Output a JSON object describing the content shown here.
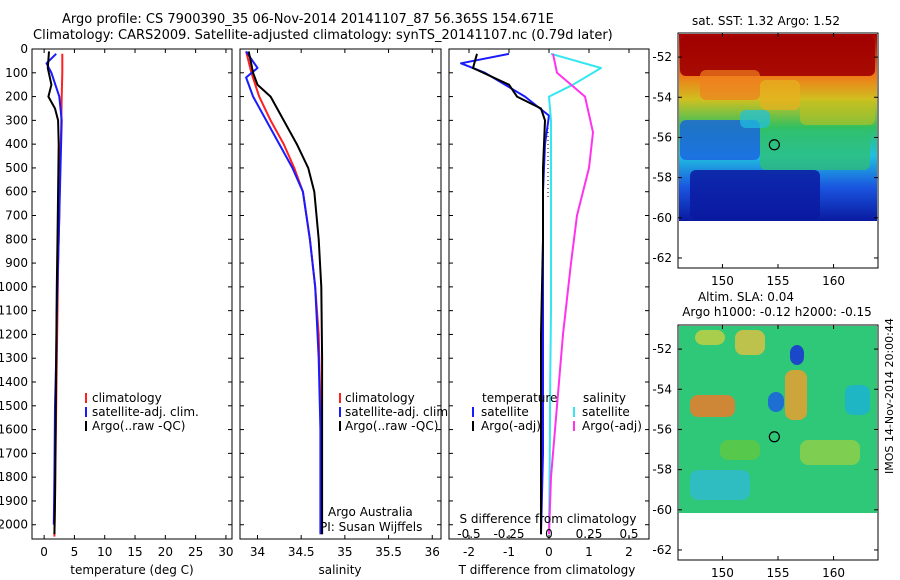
{
  "header": {
    "line1": "Argo profile: CS 7900390_35 06-Nov-2014 20141107_87 56.365S 154.671E",
    "line2": "Climatology: CARS2009. Satellite-adjusted climatology: synTS_20141107.nc (0.79d later)"
  },
  "colors": {
    "climatology": "#ff2020",
    "satellite_adj": "#1a1aff",
    "argo": "#000000",
    "salinity_satellite": "#33e6f0",
    "salinity_argo": "#ff33ee"
  },
  "chart_data": [
    {
      "type": "line",
      "panel": "temperature",
      "xlabel": "temperature (deg C)",
      "ylabel": "",
      "xlim": [
        -2,
        31
      ],
      "ylim": [
        2060,
        0
      ],
      "xticks": [
        "0",
        "5",
        "10",
        "15",
        "20",
        "25",
        "30"
      ],
      "yticks": [
        "0",
        "100",
        "200",
        "300",
        "400",
        "500",
        "600",
        "700",
        "800",
        "900",
        "1000",
        "1100",
        "1200",
        "1300",
        "1400",
        "1500",
        "1600",
        "1700",
        "1800",
        "1900",
        "2000"
      ],
      "legend": [
        "climatology",
        "satellite-adj. clim.",
        "Argo(..raw -QC)"
      ],
      "series": [
        {
          "name": "climatology",
          "x": [
            3.0,
            3.0,
            2.9,
            2.8,
            2.6,
            2.5,
            2.3,
            2.2,
            2.1,
            2.0,
            1.9,
            1.8,
            1.7
          ],
          "y": [
            20,
            100,
            200,
            350,
            500,
            700,
            900,
            1100,
            1300,
            1500,
            1700,
            1900,
            2050
          ]
        },
        {
          "name": "satellite-adj. clim.",
          "x": [
            2.0,
            0.4,
            1.2,
            2.5,
            2.9,
            2.7,
            2.5,
            2.3,
            2.1,
            2.0,
            1.8,
            1.7,
            1.6
          ],
          "y": [
            20,
            60,
            100,
            200,
            300,
            500,
            700,
            900,
            1100,
            1300,
            1500,
            1800,
            2000
          ]
        },
        {
          "name": "Argo(..raw -QC)",
          "x": [
            0.8,
            0.6,
            1.2,
            0.7,
            1.8,
            2.3,
            2.4,
            2.3,
            2.2,
            2.1,
            2.0,
            1.9,
            1.8,
            1.7
          ],
          "y": [
            10,
            80,
            150,
            200,
            250,
            300,
            400,
            600,
            800,
            1000,
            1300,
            1600,
            1900,
            2040
          ]
        }
      ]
    },
    {
      "type": "line",
      "panel": "salinity",
      "xlabel": "salinity",
      "ylabel": "",
      "xlim": [
        33.8,
        36.1
      ],
      "ylim": [
        2060,
        0
      ],
      "xticks": [
        "34",
        "34.5",
        "35",
        "35.5",
        "36"
      ],
      "legend": [
        "climatology",
        "satellite-adj. clim.",
        "Argo(..raw -QC)"
      ],
      "annotations": [
        "Argo Australia",
        "PI: Susan Wijffels"
      ],
      "series": [
        {
          "name": "climatology",
          "x": [
            33.87,
            33.93,
            34.02,
            34.15,
            34.3,
            34.42,
            34.52,
            34.6,
            34.66,
            34.7,
            34.72,
            34.73,
            34.73
          ],
          "y": [
            10,
            100,
            200,
            300,
            400,
            500,
            600,
            800,
            1000,
            1200,
            1500,
            1800,
            2040
          ]
        },
        {
          "name": "satellite-adj. clim.",
          "x": [
            33.87,
            34.0,
            33.87,
            33.95,
            34.1,
            34.25,
            34.4,
            34.52,
            34.6,
            34.66,
            34.7,
            34.72,
            34.72
          ],
          "y": [
            10,
            80,
            120,
            200,
            300,
            400,
            500,
            600,
            800,
            1000,
            1300,
            1600,
            2040
          ]
        },
        {
          "name": "Argo(..raw -QC)",
          "x": [
            33.9,
            33.95,
            34.0,
            34.15,
            34.3,
            34.45,
            34.58,
            34.65,
            34.7,
            34.73,
            34.74,
            34.74,
            34.74
          ],
          "y": [
            10,
            100,
            150,
            200,
            300,
            400,
            500,
            600,
            800,
            1000,
            1300,
            1600,
            2040
          ]
        }
      ]
    },
    {
      "type": "line",
      "panel": "difference",
      "xlabel": "T difference from climatology",
      "x2label": "S difference from climatology",
      "xlim": [
        -2.5,
        2.5
      ],
      "ylim": [
        2060,
        0
      ],
      "xticks": [
        "-2",
        "-1",
        "0",
        "1",
        "2"
      ],
      "x2ticks": [
        "-0.5",
        "-0.25",
        "0",
        "0.25",
        "0.5"
      ],
      "legend": {
        "temperature_header": "temperature",
        "salinity_header": "salinity",
        "t_satellite": "satellite",
        "t_argo": "Argo(-adj)",
        "s_satellite": "satellite",
        "s_argo": "Argo(-adj)"
      },
      "series": [
        {
          "name": "temperature satellite",
          "x": [
            -1.0,
            -2.2,
            -1.6,
            -0.6,
            0.0,
            -0.1,
            -0.15,
            -0.15,
            -0.15,
            -0.15,
            -0.2
          ],
          "y": [
            20,
            60,
            100,
            200,
            280,
            400,
            600,
            900,
            1300,
            1700,
            2040
          ]
        },
        {
          "name": "temperature Argo(-adj)",
          "x": [
            -1.8,
            -1.9,
            -1.0,
            -0.8,
            -0.2,
            -0.1,
            -0.15,
            -0.15,
            -0.2,
            -0.2,
            -0.2
          ],
          "y": [
            20,
            80,
            150,
            200,
            250,
            300,
            500,
            800,
            1200,
            1600,
            2040
          ]
        },
        {
          "name": "salinity satellite",
          "x": [
            0.05,
            1.3,
            0.6,
            0.0,
            0.05,
            0.05,
            0.05,
            0.05,
            0.03,
            0.02,
            0.0
          ],
          "y": [
            20,
            80,
            150,
            200,
            300,
            500,
            800,
            1100,
            1400,
            1700,
            2040
          ]
        },
        {
          "name": "salinity Argo(-adj)",
          "x": [
            0.1,
            0.2,
            0.9,
            1.1,
            1.0,
            0.7,
            0.55,
            0.35,
            0.2,
            0.05,
            0.0
          ],
          "y": [
            20,
            100,
            200,
            350,
            500,
            700,
            900,
            1200,
            1500,
            1800,
            2040
          ]
        }
      ]
    },
    {
      "type": "heatmap",
      "panel": "sst-map",
      "title": "sat. SST: 1.32 Argo: 1.52",
      "xlim": [
        146,
        164
      ],
      "ylim": [
        -62.5,
        -50.8
      ],
      "xticks": [
        "150",
        "155",
        "160"
      ],
      "yticks": [
        "-52",
        "-54",
        "-56",
        "-58",
        "-60",
        "-62"
      ],
      "data_extent_lat": [
        -60,
        -50.8
      ],
      "argo_position": {
        "lon": 154.671,
        "lat": -56.365
      }
    },
    {
      "type": "heatmap",
      "panel": "sla-map",
      "title_line1": "Altim. SLA: 0.04",
      "title_line2": "Argo h1000: -0.12 h2000: -0.15",
      "xlim": [
        146,
        164
      ],
      "ylim": [
        -62.5,
        -50.8
      ],
      "xticks": [
        "150",
        "155",
        "160"
      ],
      "yticks": [
        "-52",
        "-54",
        "-56",
        "-58",
        "-60",
        "-62"
      ],
      "data_extent_lat": [
        -60,
        -50.8
      ],
      "argo_position": {
        "lon": 154.671,
        "lat": -56.365
      }
    }
  ],
  "footer": {
    "stamp": "IMOS 14-Nov-2014 20:00:44"
  }
}
